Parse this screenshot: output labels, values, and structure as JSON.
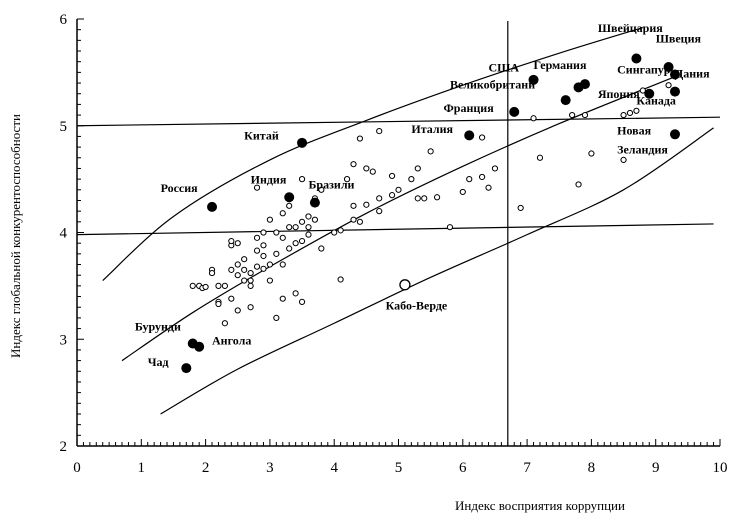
{
  "chart_data": {
    "type": "scatter",
    "title": "",
    "xlabel": "Индекс восприятия коррупции",
    "ylabel": "Индекс глобальной конкурентоспособности",
    "xlim": [
      0,
      10
    ],
    "ylim": [
      2,
      6
    ],
    "xticks": [
      "0",
      "1",
      "2",
      "3",
      "4",
      "5",
      "6",
      "7",
      "8",
      "9",
      "10"
    ],
    "yticks": [
      "2",
      "3",
      "4",
      "5",
      "6"
    ],
    "grid": false,
    "legend": "none",
    "reference_line_x": 6.7,
    "colors": {
      "points": "#000000",
      "lines": "#000000"
    },
    "labeled_points": [
      {
        "label": "Швейцария",
        "x": 8.7,
        "y": 5.63,
        "lx": 8.1,
        "ly": 5.88
      },
      {
        "label": "Швеция",
        "x": 9.2,
        "y": 5.55,
        "lx": 9.0,
        "ly": 5.78
      },
      {
        "label": "Германия",
        "x": 7.9,
        "y": 5.39,
        "lx": 7.1,
        "ly": 5.53
      },
      {
        "label": "Сингапур",
        "x": 9.3,
        "y": 5.48,
        "lx": 8.4,
        "ly": 5.49
      },
      {
        "label": "Дания",
        "x": 9.3,
        "y": 5.32,
        "lx": 9.3,
        "ly": 5.45
      },
      {
        "label": "США",
        "x": 7.1,
        "y": 5.43,
        "lx": 6.4,
        "ly": 5.51
      },
      {
        "label": "Великобритани",
        "x": 7.8,
        "y": 5.36,
        "lx": 5.8,
        "ly": 5.35
      },
      {
        "label": "Япония",
        "x": 7.6,
        "y": 5.24,
        "lx": 8.1,
        "ly": 5.26
      },
      {
        "label": "Канада",
        "x": 8.9,
        "y": 5.3,
        "lx": 8.7,
        "ly": 5.2
      },
      {
        "label": "Франция",
        "x": 6.8,
        "y": 5.13,
        "lx": 5.7,
        "ly": 5.13
      },
      {
        "label": "Италия",
        "x": 6.1,
        "y": 4.91,
        "lx": 5.2,
        "ly": 4.93
      },
      {
        "label": "Новая",
        "x": null,
        "y": null,
        "lx": 8.4,
        "ly": 4.92
      },
      {
        "label": "Зеландия",
        "x": 9.3,
        "y": 4.92,
        "lx": 8.4,
        "ly": 4.74
      },
      {
        "label": "Китай",
        "x": 3.5,
        "y": 4.84,
        "lx": 2.6,
        "ly": 4.87
      },
      {
        "label": "Россия",
        "x": 2.1,
        "y": 4.24,
        "lx": 1.3,
        "ly": 4.38
      },
      {
        "label": "Индия",
        "x": 3.3,
        "y": 4.33,
        "lx": 2.7,
        "ly": 4.46
      },
      {
        "label": "Бразили",
        "x": 3.7,
        "y": 4.28,
        "lx": 3.6,
        "ly": 4.41
      },
      {
        "label": "Бурунди",
        "x": 1.8,
        "y": 2.96,
        "lx": 0.9,
        "ly": 3.08
      },
      {
        "label": "Ангола",
        "x": 1.9,
        "y": 2.93,
        "lx": 2.1,
        "ly": 2.95
      },
      {
        "label": "Чад",
        "x": 1.7,
        "y": 2.73,
        "lx": 1.1,
        "ly": 2.75
      },
      {
        "label": "Кабо-Верде",
        "x": 5.1,
        "y": 3.51,
        "lx": 4.8,
        "ly": 3.28
      }
    ],
    "other_points": [
      [
        1.8,
        3.5
      ],
      [
        1.9,
        3.5
      ],
      [
        1.95,
        3.48
      ],
      [
        2.0,
        3.49
      ],
      [
        2.1,
        3.65
      ],
      [
        2.1,
        3.62
      ],
      [
        2.2,
        3.35
      ],
      [
        2.2,
        3.33
      ],
      [
        2.2,
        3.5
      ],
      [
        2.3,
        3.15
      ],
      [
        2.3,
        3.5
      ],
      [
        2.4,
        3.38
      ],
      [
        2.4,
        3.65
      ],
      [
        2.4,
        3.88
      ],
      [
        2.4,
        3.92
      ],
      [
        2.5,
        3.6
      ],
      [
        2.5,
        3.7
      ],
      [
        2.5,
        3.9
      ],
      [
        2.5,
        3.27
      ],
      [
        2.6,
        3.55
      ],
      [
        2.6,
        3.65
      ],
      [
        2.6,
        3.75
      ],
      [
        2.7,
        3.5
      ],
      [
        2.7,
        3.3
      ],
      [
        2.7,
        3.62
      ],
      [
        2.7,
        3.55
      ],
      [
        2.8,
        3.68
      ],
      [
        2.8,
        3.83
      ],
      [
        2.8,
        3.95
      ],
      [
        2.8,
        4.42
      ],
      [
        2.9,
        3.66
      ],
      [
        2.9,
        3.78
      ],
      [
        2.9,
        3.88
      ],
      [
        2.9,
        4.0
      ],
      [
        3.0,
        3.55
      ],
      [
        3.0,
        3.7
      ],
      [
        3.0,
        4.12
      ],
      [
        3.1,
        3.2
      ],
      [
        3.1,
        3.8
      ],
      [
        3.1,
        4.0
      ],
      [
        3.2,
        3.38
      ],
      [
        3.2,
        3.7
      ],
      [
        3.2,
        3.95
      ],
      [
        3.2,
        4.18
      ],
      [
        3.3,
        3.85
      ],
      [
        3.3,
        4.05
      ],
      [
        3.3,
        4.25
      ],
      [
        3.4,
        3.43
      ],
      [
        3.4,
        3.9
      ],
      [
        3.4,
        4.05
      ],
      [
        3.5,
        3.35
      ],
      [
        3.5,
        3.92
      ],
      [
        3.5,
        4.1
      ],
      [
        3.5,
        4.5
      ],
      [
        3.6,
        3.98
      ],
      [
        3.6,
        4.05
      ],
      [
        3.6,
        4.15
      ],
      [
        3.7,
        4.12
      ],
      [
        3.7,
        4.32
      ],
      [
        3.8,
        3.85
      ],
      [
        3.8,
        4.4
      ],
      [
        4.0,
        4.0
      ],
      [
        4.1,
        3.56
      ],
      [
        4.1,
        4.02
      ],
      [
        4.2,
        4.5
      ],
      [
        4.3,
        4.12
      ],
      [
        4.3,
        4.25
      ],
      [
        4.3,
        4.64
      ],
      [
        4.4,
        4.1
      ],
      [
        4.4,
        4.88
      ],
      [
        4.5,
        4.26
      ],
      [
        4.5,
        4.6
      ],
      [
        4.6,
        4.57
      ],
      [
        4.7,
        4.2
      ],
      [
        4.7,
        4.32
      ],
      [
        4.7,
        4.95
      ],
      [
        4.9,
        4.35
      ],
      [
        4.9,
        4.53
      ],
      [
        5.0,
        4.4
      ],
      [
        5.2,
        4.5
      ],
      [
        5.3,
        4.32
      ],
      [
        5.3,
        4.6
      ],
      [
        5.4,
        4.32
      ],
      [
        5.5,
        4.76
      ],
      [
        5.6,
        4.33
      ],
      [
        5.8,
        4.05
      ],
      [
        6.0,
        4.38
      ],
      [
        6.1,
        4.5
      ],
      [
        6.3,
        4.52
      ],
      [
        6.3,
        4.89
      ],
      [
        6.4,
        4.42
      ],
      [
        6.5,
        4.6
      ],
      [
        6.9,
        4.23
      ],
      [
        7.1,
        5.07
      ],
      [
        7.2,
        4.7
      ],
      [
        7.7,
        5.1
      ],
      [
        7.8,
        4.45
      ],
      [
        7.9,
        5.1
      ],
      [
        8.0,
        4.74
      ],
      [
        8.5,
        4.68
      ],
      [
        8.5,
        5.1
      ],
      [
        8.6,
        5.12
      ],
      [
        8.7,
        5.14
      ],
      [
        8.8,
        5.33
      ],
      [
        9.2,
        5.38
      ]
    ],
    "curves": [
      {
        "x": [
          0.4,
          1.5,
          3.0,
          4.5,
          6.0,
          7.5,
          8.8
        ],
        "y": [
          3.55,
          4.15,
          4.68,
          5.05,
          5.38,
          5.68,
          5.92
        ]
      },
      {
        "x": [
          0.7,
          1.8,
          3.0,
          4.5,
          6.0,
          7.5,
          9.3
        ],
        "y": [
          2.8,
          3.25,
          3.68,
          4.18,
          4.62,
          5.02,
          5.46
        ]
      },
      {
        "x": [
          1.3,
          2.5,
          4.0,
          5.5,
          7.0,
          8.5,
          9.9
        ],
        "y": [
          2.3,
          2.72,
          3.15,
          3.58,
          3.98,
          4.4,
          4.98
        ]
      }
    ],
    "flat_lines": [
      {
        "x": [
          0.0,
          10.0
        ],
        "y": [
          5.0,
          5.08
        ]
      },
      {
        "x": [
          0.0,
          9.9
        ],
        "y": [
          3.98,
          4.08
        ]
      }
    ]
  }
}
